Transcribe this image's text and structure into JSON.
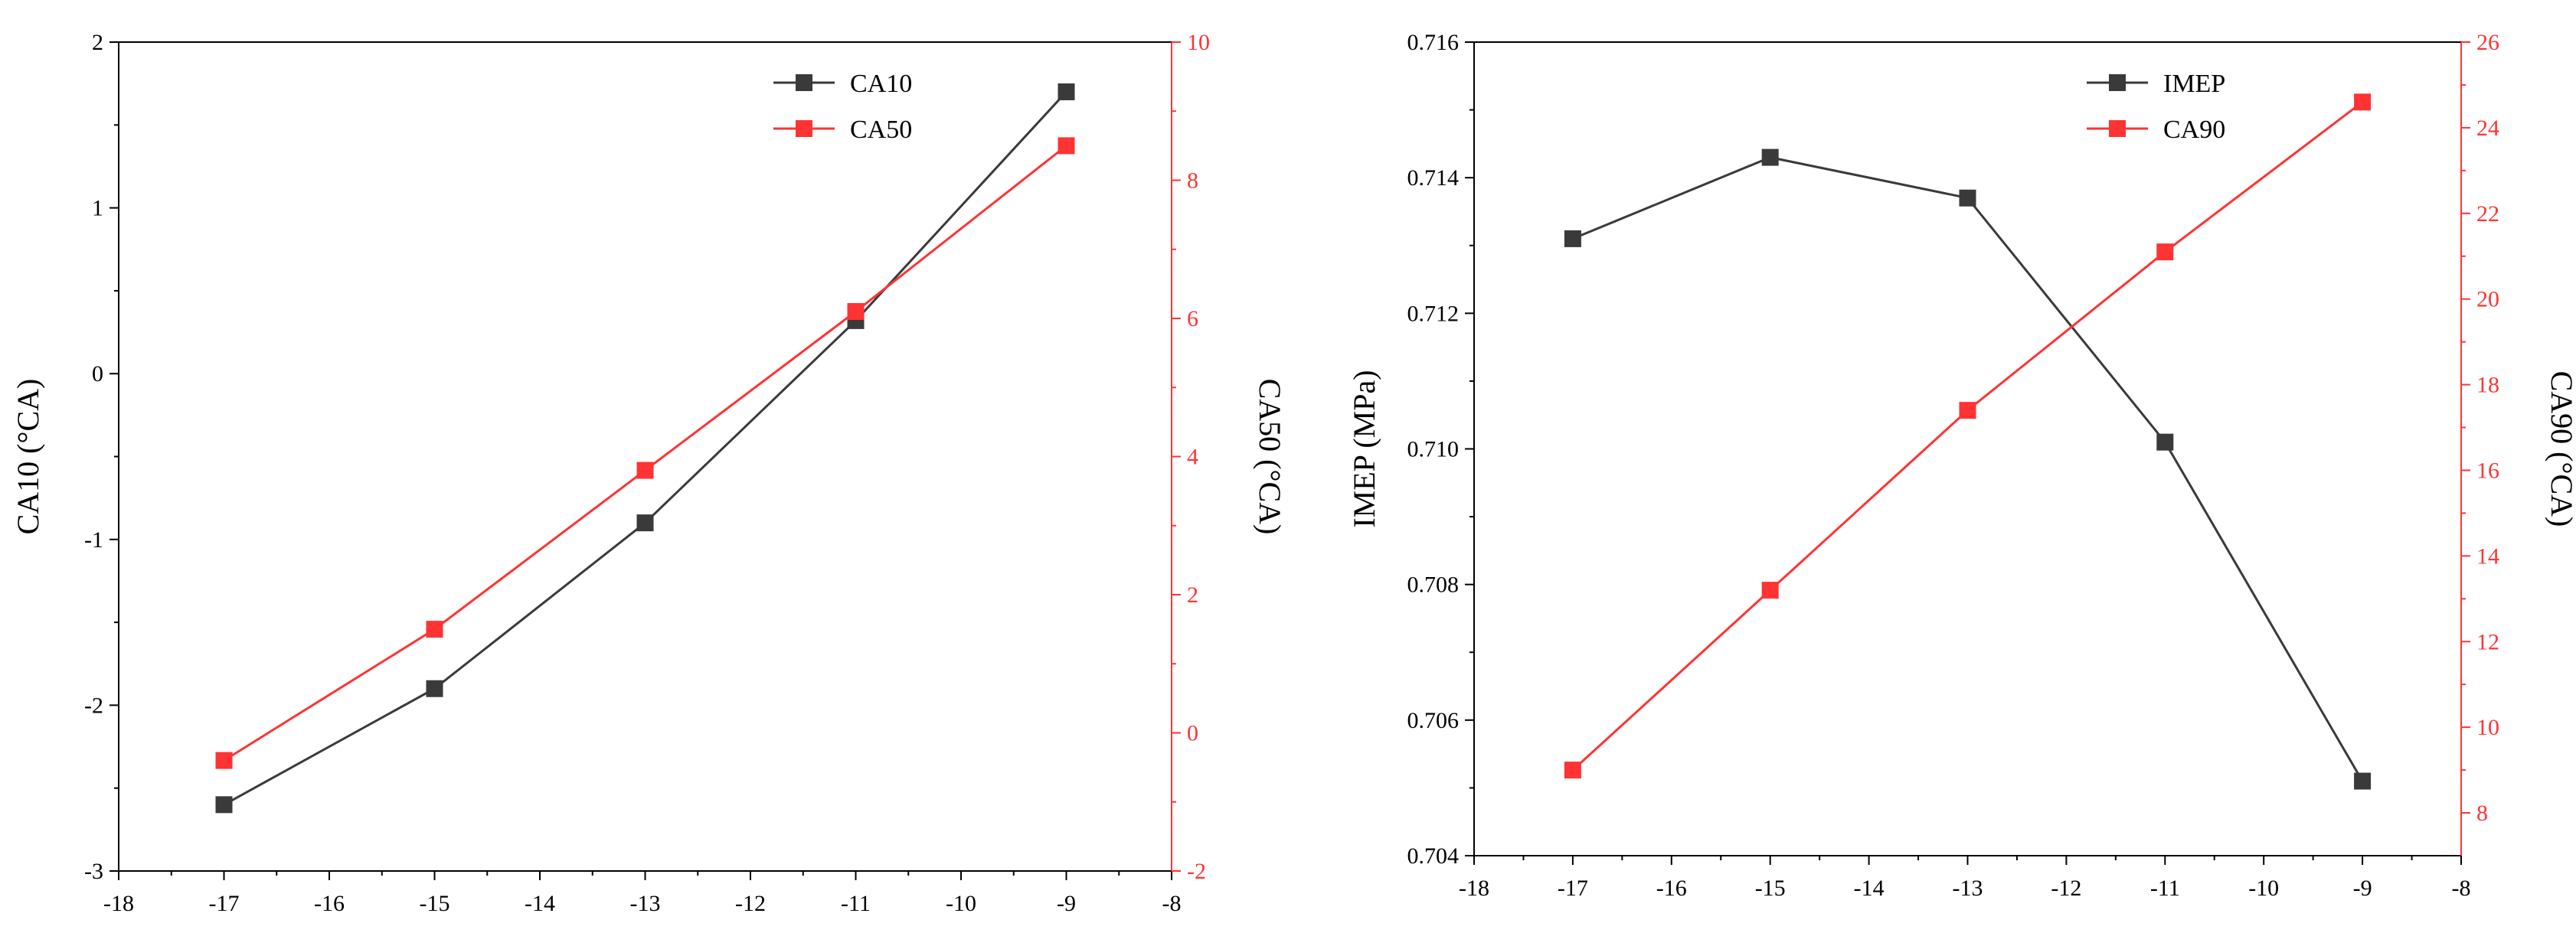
{
  "colors": {
    "series_black": "#3a3a3a",
    "series_red": "#ff3333",
    "axis_black": "#000000",
    "axis_red": "#ff3333"
  },
  "chart_data": [
    {
      "type": "line",
      "x": [
        -17,
        -15,
        -13,
        -11,
        -9
      ],
      "xlim": [
        -18,
        -8
      ],
      "xticks": [
        "-18",
        "-17",
        "-16",
        "-15",
        "-14",
        "-13",
        "-12",
        "-11",
        "-10",
        "-9",
        "-8"
      ],
      "xlabel": "",
      "y_left": {
        "label": "CA10 (°CA)",
        "lim": [
          -3,
          2
        ],
        "ticks": [
          "-3",
          "-2",
          "-1",
          "0",
          "1",
          "2"
        ]
      },
      "y_right": {
        "label": "CA50 (°CA)",
        "lim": [
          -2,
          10
        ],
        "ticks": [
          "-2",
          "0",
          "2",
          "4",
          "6",
          "8",
          "10"
        ]
      },
      "series": [
        {
          "name": "CA10",
          "axis": "left",
          "color": "#3a3a3a",
          "values": [
            -2.6,
            -1.9,
            -0.9,
            0.32,
            1.7
          ]
        },
        {
          "name": "CA50",
          "axis": "right",
          "color": "#ff3333",
          "values": [
            -0.4,
            1.5,
            3.8,
            6.1,
            8.5
          ]
        }
      ],
      "legend_position": "top-right",
      "grid": false
    },
    {
      "type": "line",
      "x": [
        -17,
        -15,
        -13,
        -11,
        -9
      ],
      "xlim": [
        -18,
        -8
      ],
      "xticks": [
        "-18",
        "-17",
        "-16",
        "-15",
        "-14",
        "-13",
        "-12",
        "-11",
        "-10",
        "-9",
        "-8"
      ],
      "xlabel": "",
      "y_left": {
        "label": "IMEP (MPa)",
        "lim": [
          0.704,
          0.716
        ],
        "ticks": [
          "0.704",
          "0.706",
          "0.708",
          "0.710",
          "0.712",
          "0.714",
          "0.716"
        ]
      },
      "y_right": {
        "label": "CA90 (°CA)",
        "lim": [
          7,
          26
        ],
        "ticks": [
          "8",
          "10",
          "12",
          "14",
          "16",
          "18",
          "20",
          "22",
          "24",
          "26"
        ]
      },
      "series": [
        {
          "name": "IMEP",
          "axis": "left",
          "color": "#3a3a3a",
          "values": [
            0.7131,
            0.7143,
            0.7137,
            0.7101,
            0.7051
          ]
        },
        {
          "name": "CA90",
          "axis": "right",
          "color": "#ff3333",
          "values": [
            9.0,
            13.2,
            17.4,
            21.1,
            24.6
          ]
        }
      ],
      "legend_position": "top-right",
      "grid": false
    }
  ]
}
